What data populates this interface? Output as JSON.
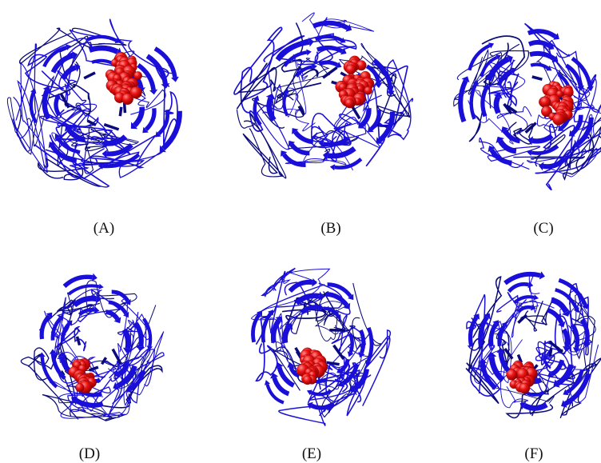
{
  "figure": {
    "panels": [
      {
        "label": "(A)"
      },
      {
        "label": "(B)"
      },
      {
        "label": "(C)"
      },
      {
        "label": "(D)"
      },
      {
        "label": "(E)"
      },
      {
        "label": "(F)"
      }
    ]
  },
  "colors": {
    "protein_ribbon": "#1a0fd8",
    "protein_dark": "#0a0a7a",
    "ligand_sphere": "#e80c0c",
    "ligand_highlight": "#ff6a6a",
    "background": "#ffffff"
  }
}
